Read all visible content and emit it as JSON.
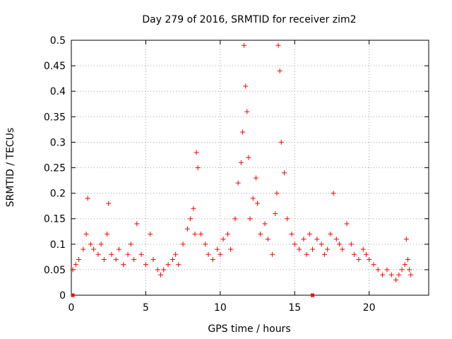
{
  "chart_data": {
    "type": "scatter",
    "title": "Day 279 of 2016, SRMTID for receiver zim2",
    "xlabel": "GPS time / hours",
    "ylabel": "SRMTID / TECUs",
    "xlim": [
      0,
      24
    ],
    "ylim": [
      0,
      0.5
    ],
    "grid": true,
    "marker": "+",
    "color": "#ff0000",
    "x_ticks": [
      0,
      5,
      10,
      15,
      20
    ],
    "x_tick_labels": [
      "0",
      "5",
      "10",
      "15",
      "20"
    ],
    "y_ticks": [
      0,
      0.05,
      0.1,
      0.15,
      0.2,
      0.25,
      0.3,
      0.35,
      0.4,
      0.45,
      0.5
    ],
    "y_tick_labels": [
      "0",
      "0.05",
      "0.1",
      "0.15",
      "0.2",
      "0.25",
      "0.3",
      "0.35",
      "0.4",
      "0.45",
      "0.5"
    ],
    "series": [
      {
        "name": "SRMTID",
        "x": [
          0.1,
          0.3,
          0.5,
          0.8,
          1.0,
          1.1,
          1.3,
          1.5,
          1.8,
          2.0,
          2.2,
          2.4,
          2.5,
          2.7,
          3.0,
          3.2,
          3.5,
          3.8,
          4.0,
          4.2,
          4.4,
          4.7,
          5.0,
          5.3,
          5.5,
          5.8,
          6.0,
          6.2,
          6.5,
          6.8,
          7.0,
          7.2,
          7.5,
          7.8,
          8.0,
          8.2,
          8.3,
          8.4,
          8.5,
          8.7,
          9.0,
          9.2,
          9.5,
          9.8,
          10.0,
          10.2,
          10.5,
          10.7,
          11.0,
          11.2,
          11.4,
          11.5,
          11.6,
          11.7,
          11.8,
          11.9,
          12.0,
          12.2,
          12.4,
          12.5,
          12.7,
          13.0,
          13.2,
          13.5,
          13.7,
          13.8,
          13.9,
          14.0,
          14.1,
          14.3,
          14.5,
          14.8,
          15.0,
          15.3,
          15.6,
          15.8,
          16.0,
          16.2,
          16.5,
          16.8,
          17.0,
          17.2,
          17.4,
          17.6,
          17.8,
          18.0,
          18.2,
          18.5,
          18.8,
          19.0,
          19.3,
          19.6,
          19.8,
          20.0,
          20.3,
          20.6,
          20.9,
          21.2,
          21.5,
          21.8,
          22.0,
          22.2,
          22.4,
          22.5,
          22.6,
          22.7,
          22.8
        ],
        "y": [
          0.05,
          0.06,
          0.07,
          0.09,
          0.12,
          0.19,
          0.1,
          0.09,
          0.08,
          0.1,
          0.07,
          0.12,
          0.18,
          0.08,
          0.07,
          0.09,
          0.06,
          0.08,
          0.1,
          0.07,
          0.14,
          0.08,
          0.06,
          0.12,
          0.07,
          0.05,
          0.04,
          0.05,
          0.06,
          0.07,
          0.08,
          0.06,
          0.1,
          0.13,
          0.15,
          0.17,
          0.12,
          0.28,
          0.25,
          0.12,
          0.1,
          0.08,
          0.07,
          0.09,
          0.08,
          0.11,
          0.12,
          0.09,
          0.15,
          0.22,
          0.26,
          0.32,
          0.49,
          0.41,
          0.36,
          0.27,
          0.15,
          0.19,
          0.23,
          0.18,
          0.12,
          0.14,
          0.11,
          0.08,
          0.16,
          0.2,
          0.49,
          0.44,
          0.3,
          0.24,
          0.15,
          0.12,
          0.1,
          0.09,
          0.11,
          0.08,
          0.12,
          0.09,
          0.11,
          0.1,
          0.08,
          0.09,
          0.12,
          0.2,
          0.11,
          0.1,
          0.09,
          0.14,
          0.1,
          0.08,
          0.07,
          0.09,
          0.08,
          0.07,
          0.06,
          0.05,
          0.04,
          0.05,
          0.04,
          0.03,
          0.04,
          0.05,
          0.06,
          0.11,
          0.07,
          0.05,
          0.04
        ]
      }
    ],
    "axis_markers": [
      0.1,
      16.2
    ]
  }
}
